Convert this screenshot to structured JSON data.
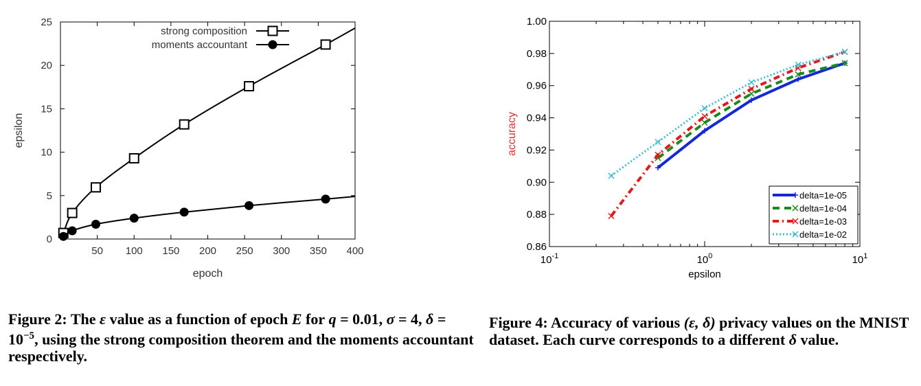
{
  "chart_data": [
    {
      "type": "line",
      "xlabel": "epoch",
      "ylabel": "epsilon",
      "xlim": [
        0,
        400
      ],
      "ylim": [
        0,
        25
      ],
      "xticks": [
        "50",
        "100",
        "150",
        "200",
        "250",
        "300",
        "350",
        "400"
      ],
      "yticks": [
        "0",
        "5",
        "10",
        "15",
        "20",
        "25"
      ],
      "grid": false,
      "legend_position": "top-right",
      "series": [
        {
          "name": "strong composition",
          "marker": "open-square",
          "color": "#000000",
          "x": [
            4,
            16,
            48,
            100,
            168,
            256,
            360
          ],
          "y": [
            0.7,
            3.0,
            5.95,
            9.3,
            13.2,
            17.6,
            22.4
          ],
          "curve_x": [
            0,
            4,
            16,
            48,
            100,
            168,
            256,
            360,
            400
          ],
          "curve_y": [
            0,
            0.7,
            3.0,
            5.95,
            9.3,
            13.2,
            17.6,
            22.4,
            24.3
          ]
        },
        {
          "name": "moments accountant",
          "marker": "filled-circle",
          "color": "#000000",
          "x": [
            4,
            16,
            48,
            100,
            168,
            256,
            360
          ],
          "y": [
            0.3,
            0.95,
            1.7,
            2.4,
            3.1,
            3.85,
            4.6
          ],
          "curve_x": [
            0,
            4,
            16,
            48,
            100,
            168,
            256,
            360,
            400
          ],
          "curve_y": [
            0,
            0.3,
            0.95,
            1.7,
            2.4,
            3.1,
            3.85,
            4.6,
            4.9
          ]
        }
      ]
    },
    {
      "type": "line",
      "xlabel": "epsilon",
      "ylabel": "accuracy",
      "ylabel_color": "#e0302b",
      "xscale": "log",
      "xlim": [
        0.1,
        10
      ],
      "ylim": [
        0.86,
        1.0
      ],
      "xticks": [
        {
          "base": "10",
          "exp": "-1",
          "value": 0.1
        },
        {
          "base": "10",
          "exp": "0",
          "value": 1
        },
        {
          "base": "10",
          "exp": "1",
          "value": 10
        }
      ],
      "yticks": [
        "0.86",
        "0.88",
        "0.90",
        "0.92",
        "0.94",
        "0.96",
        "0.98",
        "1.00"
      ],
      "grid": false,
      "legend_position": "lower-right",
      "series": [
        {
          "name": "delta=1e-05",
          "color": "#1428d8",
          "dash": "",
          "width": 4,
          "marker": "+",
          "x": [
            0.5,
            1,
            2,
            4,
            8
          ],
          "y": [
            0.909,
            0.932,
            0.951,
            0.964,
            0.974
          ]
        },
        {
          "name": "delta=1e-04",
          "color": "#1a8a1a",
          "dash": "10,7",
          "width": 4,
          "marker": "x",
          "x": [
            0.5,
            1,
            2,
            4,
            8
          ],
          "y": [
            0.915,
            0.937,
            0.955,
            0.967,
            0.974
          ]
        },
        {
          "name": "delta=1e-03",
          "color": "#e8151b",
          "dash": "9,5,2,5",
          "width": 4,
          "marker": "x",
          "x": [
            0.25,
            0.5,
            1,
            2,
            4,
            8
          ],
          "y": [
            0.879,
            0.917,
            0.941,
            0.958,
            0.971,
            0.981
          ]
        },
        {
          "name": "delta=1e-02",
          "color": "#3fbcd0",
          "dash": "2,3",
          "width": 3,
          "marker": "x",
          "x": [
            0.25,
            0.5,
            1,
            2,
            4,
            8
          ],
          "y": [
            0.904,
            0.925,
            0.946,
            0.962,
            0.973,
            0.981
          ]
        }
      ]
    }
  ],
  "captions": {
    "fig2": {
      "label": "Figure 2:",
      "t1": " The ",
      "m_eps": "ε",
      "t2": " value as a function of epoch ",
      "m_E": "E",
      "t3": " for",
      "m_q": "q",
      "t4": " = 0.01, ",
      "m_sigma": "σ",
      "t5": " = 4, ",
      "m_delta": "δ",
      "t6": " = 10",
      "exp": "−5",
      "t7": ", using the strong composition theorem and the moments accountant respectively."
    },
    "fig4": {
      "label": "Figure 4:",
      "t1": " Accuracy of various ",
      "m_pair": "(ε, δ)",
      "t2": " privacy values on the MNIST dataset. Each curve corresponds to a different ",
      "m_delta": "δ",
      "t3": " value."
    }
  }
}
